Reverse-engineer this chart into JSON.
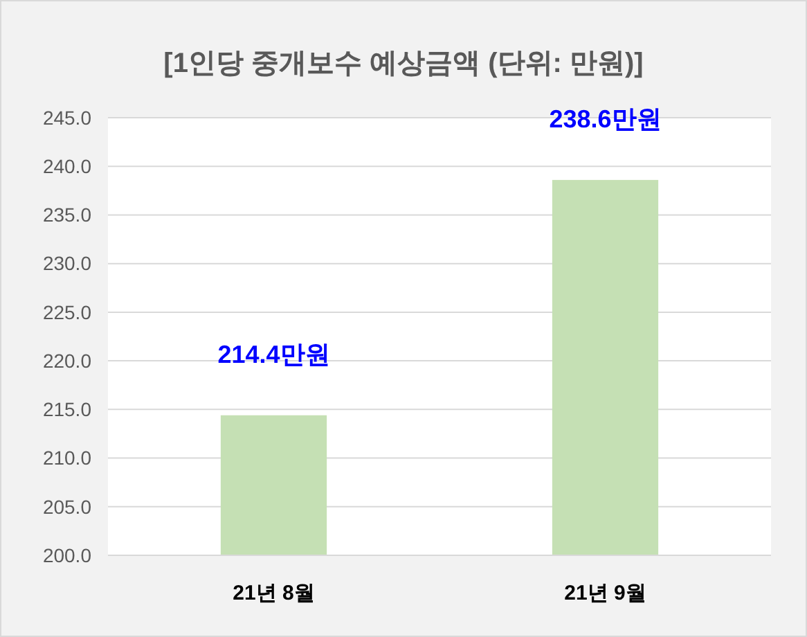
{
  "chart_data": {
    "type": "bar",
    "title": "[1인당 중개보수 예상금액 (단위: 만원)]",
    "categories": [
      "21년 8월",
      "21년 9월"
    ],
    "values": [
      214.4,
      238.6
    ],
    "color": "#c5e0b4",
    "value_labels": [
      "214.4만원",
      "238.6만원"
    ],
    "ylim": [
      200,
      245
    ],
    "yticks": [
      {
        "value": 200,
        "label": "200.0"
      },
      {
        "value": 205,
        "label": "205.0"
      },
      {
        "value": 210,
        "label": "210.0"
      },
      {
        "value": 215,
        "label": "215.0"
      },
      {
        "value": 220,
        "label": "220.0"
      },
      {
        "value": 225,
        "label": "225.0"
      },
      {
        "value": 230,
        "label": "230.0"
      },
      {
        "value": 235,
        "label": "235.0"
      },
      {
        "value": 240,
        "label": "240.0"
      },
      {
        "value": 245,
        "label": "245.0"
      }
    ],
    "grid": "y"
  }
}
